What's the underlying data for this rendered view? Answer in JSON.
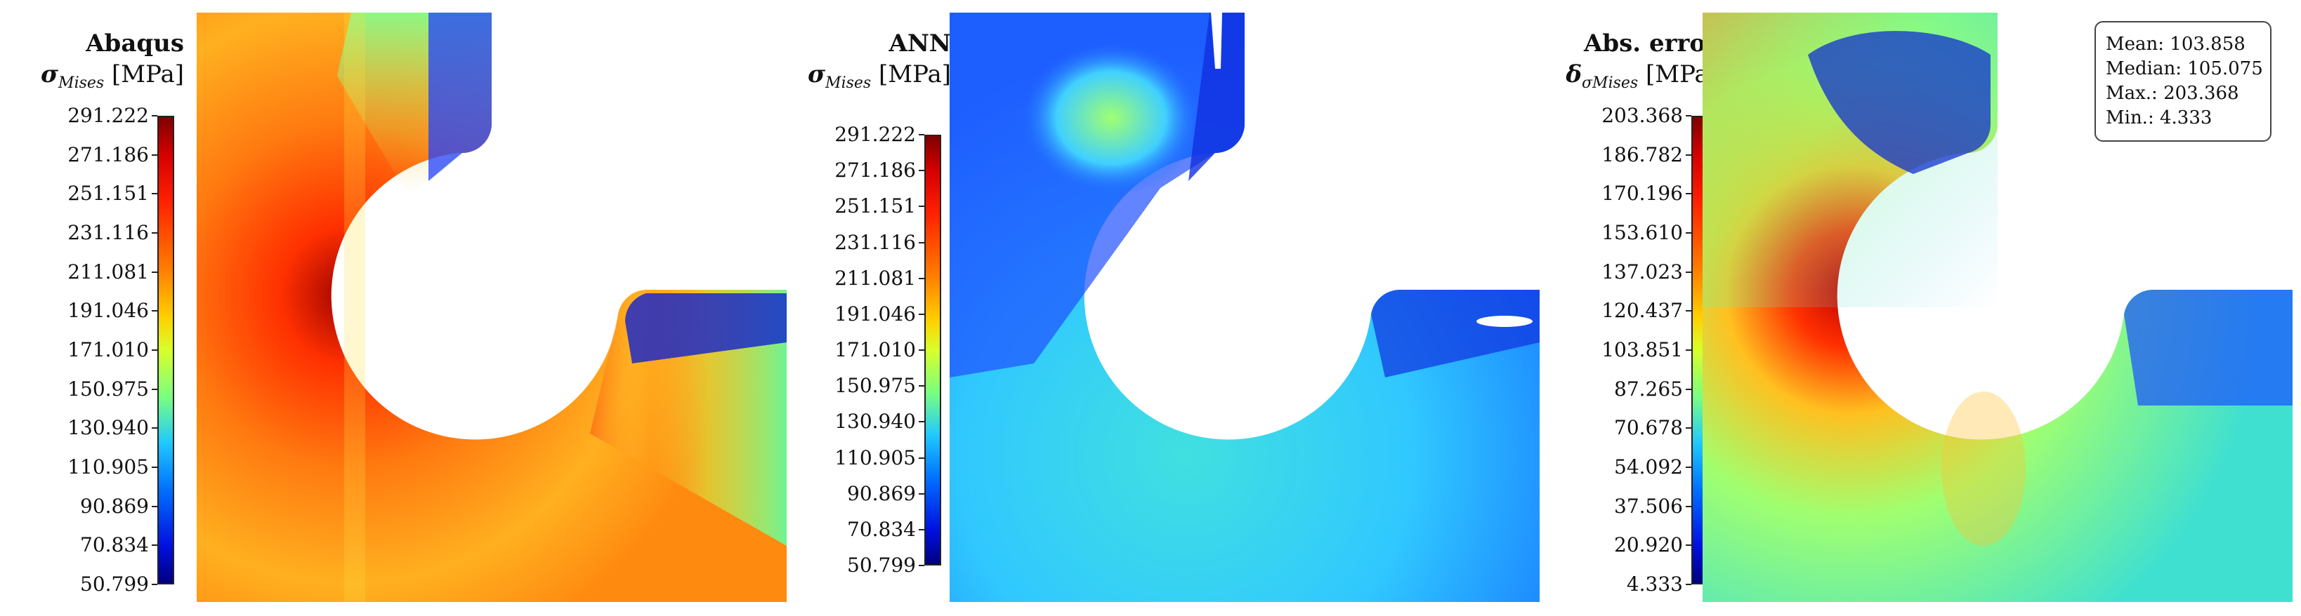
{
  "panels": [
    {
      "title": "Abaqus",
      "symbol": "σ",
      "subscript": "Mises",
      "unit": "[MPa]",
      "ticks": [
        "291.222",
        "271.186",
        "251.151",
        "231.116",
        "211.081",
        "191.046",
        "171.010",
        "150.975",
        "130.940",
        "110.905",
        "90.869",
        "70.834",
        "50.799"
      ]
    },
    {
      "title": "ANN",
      "symbol": "σ",
      "subscript": "Mises",
      "unit": "[MPa]",
      "ticks": [
        "291.222",
        "271.186",
        "251.151",
        "231.116",
        "211.081",
        "191.046",
        "171.010",
        "150.975",
        "130.940",
        "110.905",
        "90.869",
        "70.834",
        "50.799"
      ]
    },
    {
      "title": "Abs. error",
      "symbol": "δ",
      "subscript": "σMises",
      "unit": "[MPa]",
      "ticks": [
        "203.368",
        "186.782",
        "170.196",
        "153.610",
        "137.023",
        "120.437",
        "103.851",
        "87.265",
        "70.678",
        "54.092",
        "37.506",
        "20.920",
        "4.333"
      ]
    }
  ],
  "stats": {
    "mean": "Mean: 103.858",
    "median": "Median: 105.075",
    "max": "Max.: 203.368",
    "min": "Min.: 4.333"
  },
  "colors": {
    "jet_high": "#7f0000",
    "jet_red": "#ff2000",
    "jet_orange": "#ff8000",
    "jet_yellow": "#ffd000",
    "jet_green": "#7aff80",
    "jet_cyan": "#20c8ff",
    "jet_blue": "#0070ff",
    "jet_low": "#00007f"
  }
}
